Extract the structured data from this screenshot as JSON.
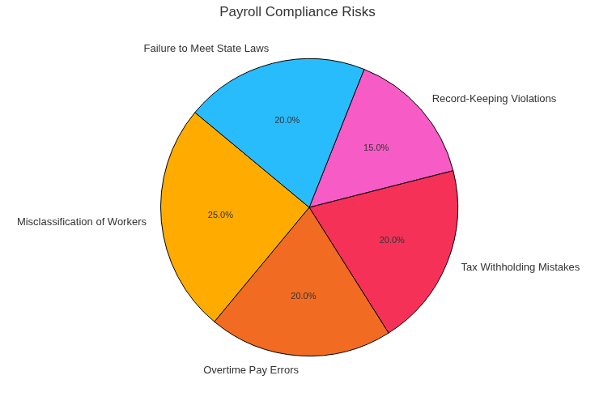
{
  "chart_data": {
    "type": "pie",
    "title": "Payroll Compliance Risks",
    "categories": [
      "Record-Keeping Violations",
      "Tax Withholding Mistakes",
      "Overtime Pay Errors",
      "Misclassification of Workers",
      "Failure to Meet State Laws"
    ],
    "values": [
      15,
      20,
      20,
      25,
      20
    ],
    "value_labels": [
      "15.0%",
      "20.0%",
      "20.0%",
      "25.0%",
      "20.0%"
    ],
    "colors": [
      "#f75bc6",
      "#f53158",
      "#f26b22",
      "#ffab00",
      "#29bcfc"
    ],
    "data_labels": true
  }
}
